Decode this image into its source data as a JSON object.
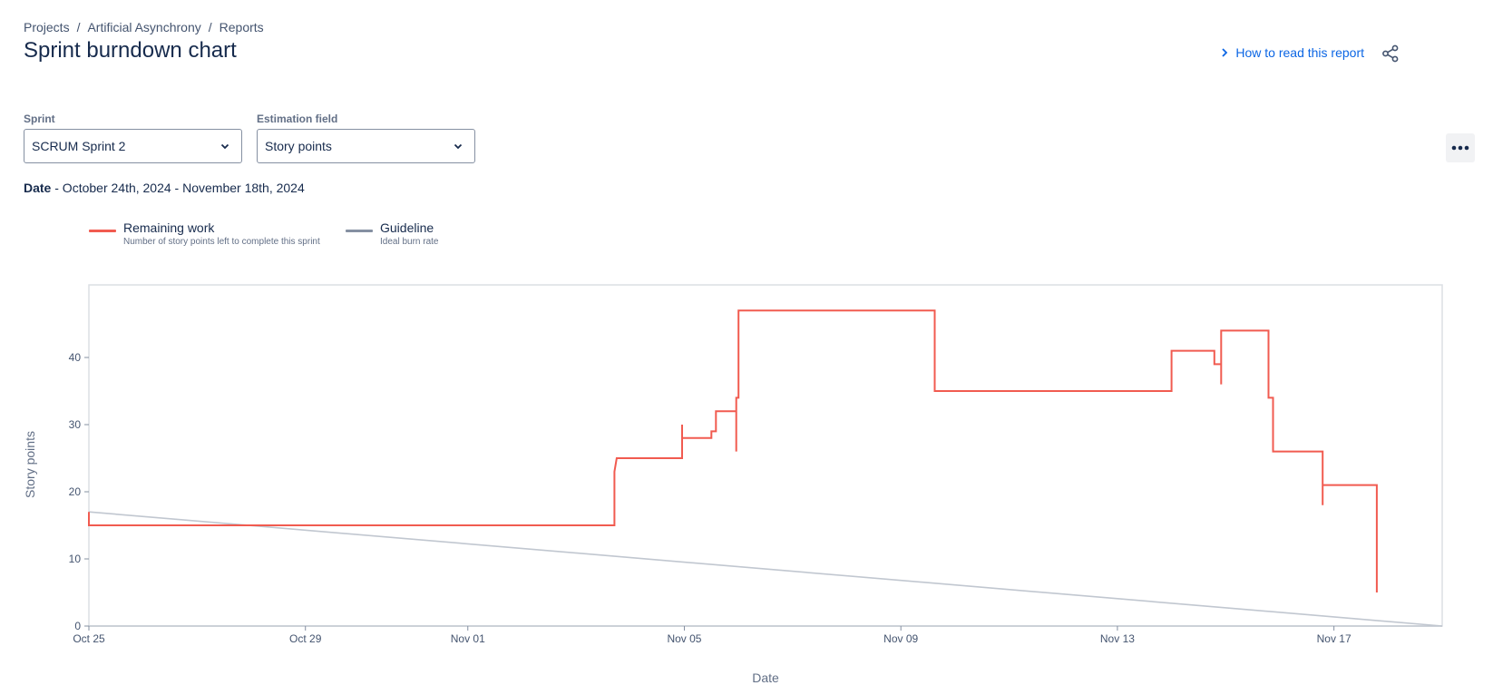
{
  "breadcrumb": {
    "items": [
      "Projects",
      "Artificial Asynchrony",
      "Reports"
    ],
    "separator": "/"
  },
  "header": {
    "title": "Sprint burndown chart",
    "help_link": "How to read this report"
  },
  "filters": {
    "sprint_label": "Sprint",
    "sprint_value": "SCRUM Sprint 2",
    "estimation_label": "Estimation field",
    "estimation_value": "Story points"
  },
  "date_range": {
    "label": "Date",
    "value": "- October 24th, 2024 - November 18th, 2024"
  },
  "legend": [
    {
      "title": "Remaining work",
      "description": "Number of story points left to complete this sprint",
      "color": "#f15b50"
    },
    {
      "title": "Guideline",
      "description": "Ideal burn rate",
      "color": "#8590a2"
    }
  ],
  "icons": {
    "help": "chevron-right-icon",
    "share": "share-icon",
    "more": "more-icon",
    "dropdown": "chevron-down-icon"
  },
  "chart_data": {
    "type": "line",
    "xlabel": "Date",
    "ylabel": "Story points",
    "x_domain": [
      "2024-10-25",
      "2024-11-19"
    ],
    "x_ticks": [
      "Oct 25",
      "Oct 29",
      "Nov 01",
      "Nov 05",
      "Nov 09",
      "Nov 13",
      "Nov 17"
    ],
    "x_tick_dates": [
      "2024-10-25",
      "2024-10-29",
      "2024-11-01",
      "2024-11-05",
      "2024-11-09",
      "2024-11-13",
      "2024-11-17"
    ],
    "y_ticks": [
      0,
      10,
      20,
      30,
      40
    ],
    "ylim": [
      0,
      50
    ],
    "series": [
      {
        "name": "Remaining work",
        "color": "#f15b50",
        "points": [
          [
            "2024-10-25T00:00",
            17
          ],
          [
            "2024-10-25T00:00",
            15
          ],
          [
            "2024-11-03T17:00",
            15
          ],
          [
            "2024-11-03T17:00",
            23
          ],
          [
            "2024-11-03T18:00",
            25
          ],
          [
            "2024-11-04T23:00",
            25
          ],
          [
            "2024-11-04T23:00",
            30
          ],
          [
            "2024-11-04T23:00",
            28
          ],
          [
            "2024-11-05T12:00",
            28
          ],
          [
            "2024-11-05T12:00",
            29
          ],
          [
            "2024-11-05T14:00",
            29
          ],
          [
            "2024-11-05T14:00",
            32
          ],
          [
            "2024-11-05T23:00",
            32
          ],
          [
            "2024-11-05T23:00",
            26
          ],
          [
            "2024-11-05T23:00",
            34
          ],
          [
            "2024-11-06T00:00",
            34
          ],
          [
            "2024-11-06T00:00",
            47
          ],
          [
            "2024-11-09T15:00",
            47
          ],
          [
            "2024-11-09T15:00",
            35
          ],
          [
            "2024-11-14T00:00",
            35
          ],
          [
            "2024-11-14T00:00",
            41
          ],
          [
            "2024-11-14T19:00",
            41
          ],
          [
            "2024-11-14T19:00",
            39
          ],
          [
            "2024-11-14T22:00",
            39
          ],
          [
            "2024-11-14T22:00",
            36
          ],
          [
            "2024-11-14T22:00",
            44
          ],
          [
            "2024-11-15T19:00",
            44
          ],
          [
            "2024-11-15T19:00",
            34
          ],
          [
            "2024-11-15T21:00",
            34
          ],
          [
            "2024-11-15T21:00",
            26
          ],
          [
            "2024-11-16T19:00",
            26
          ],
          [
            "2024-11-16T19:00",
            18
          ],
          [
            "2024-11-16T19:00",
            21
          ],
          [
            "2024-11-17T19:00",
            21
          ],
          [
            "2024-11-17T19:00",
            5
          ]
        ]
      },
      {
        "name": "Guideline",
        "color": "#c1c7d0",
        "points": [
          [
            "2024-10-25T00:00",
            17
          ],
          [
            "2024-11-19T00:00",
            0
          ]
        ]
      }
    ],
    "grid": false,
    "legend_position": "top-left"
  }
}
